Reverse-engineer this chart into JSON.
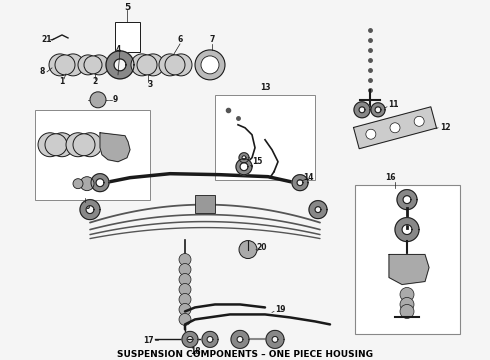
{
  "title": "SUSPENSION COMPONENTS – ONE PIECE HOUSING",
  "title_fontsize": 6.5,
  "bg_color": "#f5f5f5",
  "line_color": "#1a1a1a",
  "figsize": [
    4.9,
    3.6
  ],
  "dpi": 100,
  "label_fontsize": 6.0
}
